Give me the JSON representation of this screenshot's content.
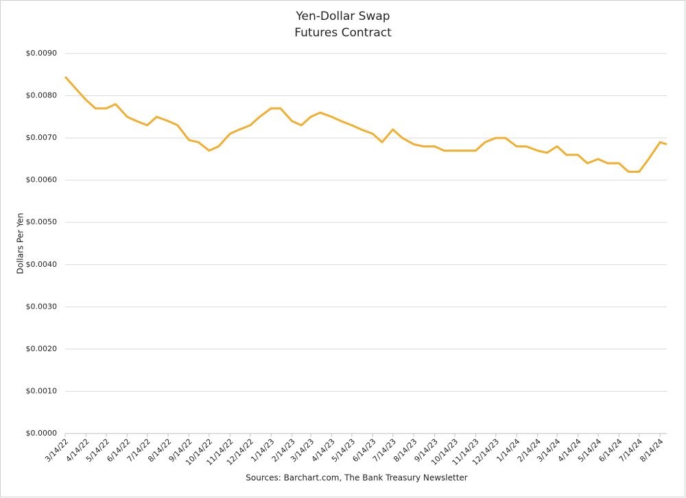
{
  "chart_data": {
    "type": "line",
    "title": "Yen-Dollar Swap",
    "subtitle": "Futures Contract",
    "y_label": "Dollars Per Yen",
    "source": "Sources: Barchart.com, The Bank Treasury Newsletter",
    "x": [
      "3/14/22",
      "3/28/22",
      "4/14/22",
      "4/28/22",
      "5/14/22",
      "5/28/22",
      "6/14/22",
      "6/28/22",
      "7/14/22",
      "7/28/22",
      "8/14/22",
      "8/28/22",
      "9/14/22",
      "9/28/22",
      "10/14/22",
      "10/28/22",
      "11/14/22",
      "11/28/22",
      "12/14/22",
      "12/28/22",
      "1/14/23",
      "1/28/23",
      "2/14/23",
      "2/28/23",
      "3/14/23",
      "3/28/23",
      "4/14/23",
      "4/28/23",
      "5/14/23",
      "5/28/23",
      "6/14/23",
      "6/28/23",
      "7/14/23",
      "7/28/23",
      "8/14/23",
      "8/28/23",
      "9/14/23",
      "9/28/23",
      "10/14/23",
      "10/28/23",
      "11/14/23",
      "11/28/23",
      "12/14/23",
      "12/28/23",
      "1/14/24",
      "1/28/24",
      "2/14/24",
      "2/28/24",
      "3/14/24",
      "3/28/24",
      "4/14/24",
      "4/28/24",
      "5/14/24",
      "5/28/24",
      "6/14/24",
      "6/28/24",
      "7/14/24",
      "7/28/24",
      "8/14/24",
      "8/24/24"
    ],
    "series": [
      {
        "color": "#f2ae2c",
        "values": [
          0.00845,
          0.0082,
          0.0079,
          0.0077,
          0.0077,
          0.0078,
          0.0075,
          0.0074,
          0.0073,
          0.0075,
          0.0074,
          0.0073,
          0.00695,
          0.0069,
          0.0067,
          0.0068,
          0.0071,
          0.0072,
          0.0073,
          0.0075,
          0.0077,
          0.0077,
          0.0074,
          0.0073,
          0.0075,
          0.0076,
          0.0075,
          0.0074,
          0.0073,
          0.0072,
          0.0071,
          0.0069,
          0.0072,
          0.007,
          0.00685,
          0.0068,
          0.0068,
          0.0067,
          0.0067,
          0.0067,
          0.0067,
          0.0069,
          0.007,
          0.007,
          0.0068,
          0.0068,
          0.0067,
          0.00665,
          0.0068,
          0.0066,
          0.0066,
          0.0064,
          0.0065,
          0.0064,
          0.0064,
          0.0062,
          0.0062,
          0.0065,
          0.0069,
          0.00685
        ]
      }
    ],
    "xlim": [
      "3/14/22",
      "8/24/24"
    ],
    "xticks": [
      "3/14/22",
      "4/14/22",
      "5/14/22",
      "6/14/22",
      "7/14/22",
      "8/14/22",
      "9/14/22",
      "10/14/22",
      "11/14/22",
      "12/14/22",
      "1/14/23",
      "2/14/23",
      "3/14/23",
      "4/14/23",
      "5/14/23",
      "6/14/23",
      "7/14/23",
      "8/14/23",
      "9/14/23",
      "10/14/23",
      "11/14/23",
      "12/14/23",
      "1/14/24",
      "2/14/24",
      "3/14/24",
      "4/14/24",
      "5/14/24",
      "6/14/24",
      "7/14/24",
      "8/14/24"
    ],
    "ylim": [
      0,
      0.009
    ],
    "yticks": [
      {
        "value": 0,
        "label": "$0.0000"
      },
      {
        "value": 0.001,
        "label": "$0.0010"
      },
      {
        "value": 0.002,
        "label": "$0.0020"
      },
      {
        "value": 0.003,
        "label": "$0.0030"
      },
      {
        "value": 0.004,
        "label": "$0.0040"
      },
      {
        "value": 0.005,
        "label": "$0.0050"
      },
      {
        "value": 0.006,
        "label": "$0.0060"
      },
      {
        "value": 0.007,
        "label": "$0.0070"
      },
      {
        "value": 0.008,
        "label": "$0.0080"
      },
      {
        "value": 0.009,
        "label": "$0.0090"
      }
    ],
    "grid": true
  }
}
